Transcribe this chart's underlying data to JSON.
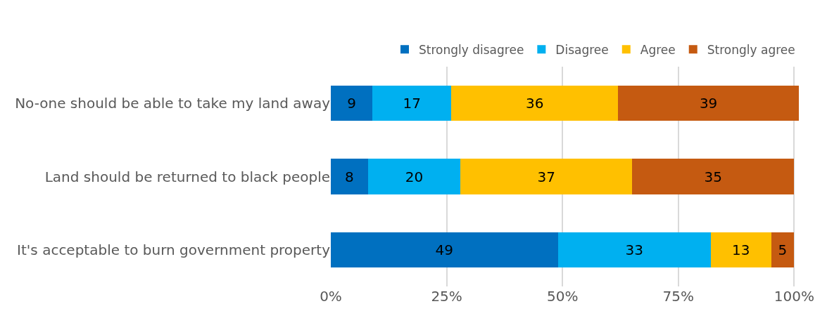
{
  "chart_data": {
    "type": "bar",
    "orientation": "horizontal",
    "stacked": true,
    "categories": [
      "No-one should be able to take my land away",
      "Land should be returned to black people",
      "It's acceptable to burn government property"
    ],
    "series": [
      {
        "name": "Strongly disagree",
        "color": "#0070c0",
        "values": [
          9,
          8,
          49
        ]
      },
      {
        "name": "Disagree",
        "color": "#00b0f0",
        "values": [
          17,
          20,
          33
        ]
      },
      {
        "name": "Agree",
        "color": "#ffc000",
        "values": [
          36,
          37,
          13
        ]
      },
      {
        "name": "Strongly agree",
        "color": "#c55a11",
        "values": [
          39,
          35,
          5
        ]
      }
    ],
    "xlim": [
      0,
      101
    ],
    "xticks": [
      {
        "value": 0,
        "label": "0%"
      },
      {
        "value": 25,
        "label": "25%"
      },
      {
        "value": 50,
        "label": "50%"
      },
      {
        "value": 75,
        "label": "75%"
      },
      {
        "value": 100,
        "label": "100%"
      }
    ],
    "grid": "x",
    "legend": "top right",
    "data_labels": true
  }
}
